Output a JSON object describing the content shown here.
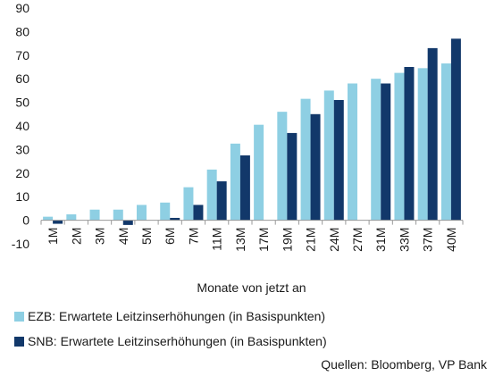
{
  "chart_data": {
    "type": "bar",
    "categories": [
      "1M",
      "2M",
      "3M",
      "4M",
      "5M",
      "6M",
      "7M",
      "11M",
      "13M",
      "17M",
      "19M",
      "21M",
      "24M",
      "27M",
      "31M",
      "33M",
      "37M",
      "40M"
    ],
    "series": [
      {
        "name": "EZB: Erwartete Leitzinserhöhungen (in Basispunkten)",
        "color": "#8ecfe3",
        "values": [
          1.5,
          2.5,
          4.5,
          4.5,
          6.5,
          7.5,
          14,
          21.5,
          32.5,
          40.5,
          46,
          51.5,
          55,
          58,
          60,
          62.5,
          64.5,
          66.5
        ]
      },
      {
        "name": "SNB: Erwartete Leitzinserhöhungen (in Basispunkten)",
        "color": "#12386a",
        "values": [
          -1.5,
          0,
          0,
          -2,
          0,
          1,
          6.5,
          16.5,
          27.5,
          0,
          37,
          45,
          51,
          0,
          58,
          65,
          73,
          77
        ]
      }
    ],
    "xlabel": "Monate von jetzt an",
    "ylabel": "",
    "ylim": [
      -10,
      90
    ],
    "yticks": [
      "-10",
      "0",
      "10",
      "20",
      "30",
      "40",
      "50",
      "60",
      "70",
      "80",
      "90"
    ],
    "grid": false,
    "legend_position": "bottom-left"
  },
  "source": "Quellen: Bloomberg, VP Bank"
}
